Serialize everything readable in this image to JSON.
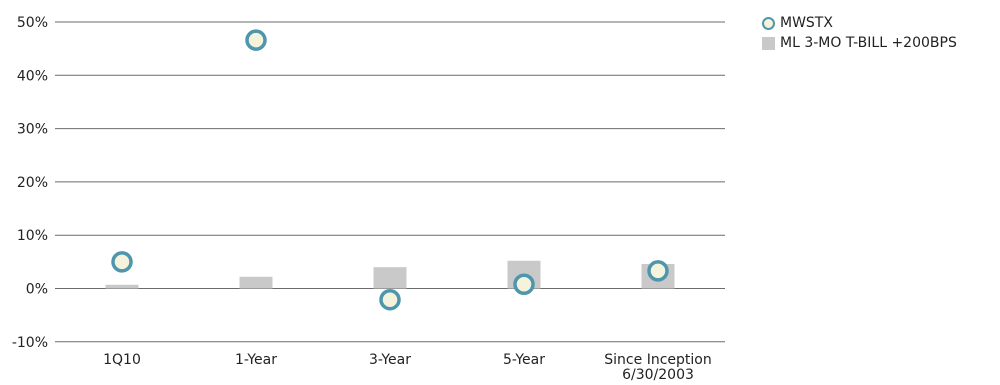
{
  "chart_data": {
    "type": "bar",
    "categories": [
      "1Q10",
      "1-Year",
      "3-Year",
      "5-Year",
      "Since Inception|6/30/2003"
    ],
    "y_ticks": [
      "50%",
      "40%",
      "30%",
      "20%",
      "10%",
      "0%",
      "-10%"
    ],
    "ylim": [
      -10,
      50
    ],
    "grid": true,
    "legend_position": "top-right",
    "series": [
      {
        "name": "MWSTX",
        "marker": "circle",
        "values": [
          5.0,
          46.6,
          -2.1,
          0.8,
          3.3
        ],
        "color": "#4e96ad",
        "fill": "#f5f3dc"
      },
      {
        "name": "ML 3-MO T-BILL +200BPS",
        "marker": "bar",
        "values": [
          0.7,
          2.2,
          4.0,
          5.2,
          4.6
        ],
        "color": "#c9c9c9"
      }
    ]
  }
}
